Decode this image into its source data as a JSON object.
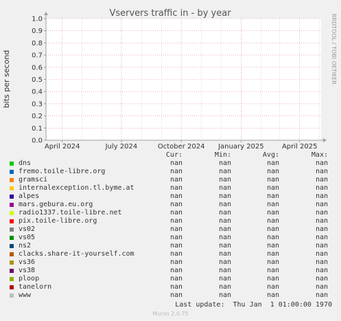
{
  "chart_data": {
    "type": "line",
    "title": "Vservers traffic in - by year",
    "ylabel": "bits per second",
    "ylim": [
      0.0,
      1.0
    ],
    "yticks": [
      "0.0",
      "0.1",
      "0.2",
      "0.3",
      "0.4",
      "0.5",
      "0.6",
      "0.7",
      "0.8",
      "0.9",
      "1.0"
    ],
    "xticks": [
      "April 2024",
      "July 2024",
      "October 2024",
      "January 2025",
      "April 2025"
    ],
    "xtick_dates": [
      "2024-04-01",
      "2024-07-01",
      "2024-10-01",
      "2025-01-01",
      "2025-04-01"
    ],
    "xlim": [
      "2024-03-07",
      "2025-05-04"
    ],
    "grid": true,
    "legend": "below",
    "series": []
  },
  "vertical_text": "RRDTOOL / TOBI OETIKER",
  "legend": {
    "headers": [
      "Cur:",
      "Min:",
      "Avg:",
      "Max:"
    ],
    "items": [
      {
        "name": "dns",
        "color": "#00cc00",
        "cur": "nan",
        "min": "nan",
        "avg": "nan",
        "max": "nan"
      },
      {
        "name": "fremo.toile-libre.org",
        "color": "#0066b3",
        "cur": "nan",
        "min": "nan",
        "avg": "nan",
        "max": "nan"
      },
      {
        "name": "gramsci",
        "color": "#ff8000",
        "cur": "nan",
        "min": "nan",
        "avg": "nan",
        "max": "nan"
      },
      {
        "name": "internalexception.tl.byme.at",
        "color": "#ffcc00",
        "cur": "nan",
        "min": "nan",
        "avg": "nan",
        "max": "nan"
      },
      {
        "name": "alpes",
        "color": "#330099",
        "cur": "nan",
        "min": "nan",
        "avg": "nan",
        "max": "nan"
      },
      {
        "name": "mars.gebura.eu.org",
        "color": "#990099",
        "cur": "nan",
        "min": "nan",
        "avg": "nan",
        "max": "nan"
      },
      {
        "name": "radio1337.toile-libre.net",
        "color": "#ccff00",
        "cur": "nan",
        "min": "nan",
        "avg": "nan",
        "max": "nan"
      },
      {
        "name": "pix.toile-libre.org",
        "color": "#ff0000",
        "cur": "nan",
        "min": "nan",
        "avg": "nan",
        "max": "nan"
      },
      {
        "name": "vs02",
        "color": "#808080",
        "cur": "nan",
        "min": "nan",
        "avg": "nan",
        "max": "nan"
      },
      {
        "name": "vs05",
        "color": "#008f00",
        "cur": "nan",
        "min": "nan",
        "avg": "nan",
        "max": "nan"
      },
      {
        "name": "ns2",
        "color": "#00487d",
        "cur": "nan",
        "min": "nan",
        "avg": "nan",
        "max": "nan"
      },
      {
        "name": "clacks.share-it-yourself.com",
        "color": "#b35a00",
        "cur": "nan",
        "min": "nan",
        "avg": "nan",
        "max": "nan"
      },
      {
        "name": "vs36",
        "color": "#b38f00",
        "cur": "nan",
        "min": "nan",
        "avg": "nan",
        "max": "nan"
      },
      {
        "name": "vs38",
        "color": "#6b006b",
        "cur": "nan",
        "min": "nan",
        "avg": "nan",
        "max": "nan"
      },
      {
        "name": "ploop",
        "color": "#8fb300",
        "cur": "nan",
        "min": "nan",
        "avg": "nan",
        "max": "nan"
      },
      {
        "name": "tanelorn",
        "color": "#b30000",
        "cur": "nan",
        "min": "nan",
        "avg": "nan",
        "max": "nan"
      },
      {
        "name": "www",
        "color": "#bebebe",
        "cur": "nan",
        "min": "nan",
        "avg": "nan",
        "max": "nan"
      }
    ]
  },
  "last_update": "Last update:  Thu Jan  1 01:00:00 1970",
  "footer": "Munin 2.0.75"
}
